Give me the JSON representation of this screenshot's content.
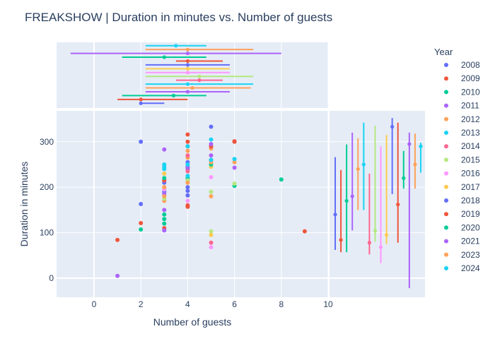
{
  "chart_data": {
    "type": "scatter",
    "title": "FREAKSHOW | Duration in minutes vs. Number of guests",
    "xlabel": "Number of guests",
    "ylabel": "Duration in minutes",
    "xlim": [
      -1.6,
      10
    ],
    "ylim": [
      -42,
      368
    ],
    "x_ticks": [
      0,
      2,
      4,
      6,
      8,
      10
    ],
    "y_ticks": [
      0,
      100,
      200,
      300
    ],
    "legend_title": "Year",
    "legend_position": "right",
    "grid": true,
    "series": [
      {
        "name": "2008",
        "color": "#636efa",
        "points": [
          [
            2,
            163
          ],
          [
            4,
            182
          ],
          [
            4,
            192
          ],
          [
            4,
            215
          ],
          [
            5,
            333
          ],
          [
            3,
            190
          ],
          [
            4,
            200
          ]
        ],
        "marginal_x": {
          "min": 2,
          "max": 3,
          "median": 2
        },
        "marginal_y": {
          "min": 62,
          "max": 266,
          "median": 140,
          "mean": 140
        }
      },
      {
        "name": "2009",
        "color": "#EF553B",
        "points": [
          [
            1,
            84
          ],
          [
            2,
            121
          ],
          [
            4,
            316
          ],
          [
            4,
            157
          ],
          [
            6,
            301
          ],
          [
            9,
            103
          ],
          [
            3,
            110
          ],
          [
            4,
            240
          ],
          [
            4,
            290
          ]
        ],
        "marginal_x": {
          "min": 1,
          "max": 4,
          "median": 2
        },
        "marginal_y": {
          "min": 57,
          "max": 238,
          "median": 84,
          "mean": 84
        }
      },
      {
        "name": "2010",
        "color": "#00cc96",
        "points": [
          [
            2,
            107
          ],
          [
            3,
            120
          ],
          [
            4,
            220
          ],
          [
            6,
            203
          ],
          [
            8,
            217
          ],
          [
            3,
            140
          ]
        ],
        "marginal_x": {
          "min": 1.2,
          "max": 4.8,
          "median": 3.4
        },
        "marginal_y": {
          "min": 57,
          "max": 294,
          "median": 170,
          "mean": 170
        }
      },
      {
        "name": "2011",
        "color": "#ab63fa",
        "points": [
          [
            1,
            5
          ],
          [
            3,
            283
          ],
          [
            4,
            240
          ],
          [
            5,
            260
          ],
          [
            6,
            243
          ],
          [
            3,
            150
          ]
        ],
        "marginal_x": {
          "min": 2.2,
          "max": 5.8,
          "median": 4
        },
        "marginal_y": {
          "min": 105,
          "max": 320,
          "median": 180,
          "mean": 180
        }
      },
      {
        "name": "2012",
        "color": "#FFA15A",
        "points": [
          [
            3,
            170
          ],
          [
            4,
            280
          ],
          [
            5,
            285
          ],
          [
            5,
            180
          ],
          [
            6,
            255
          ],
          [
            4,
            265
          ],
          [
            3,
            200
          ]
        ],
        "marginal_x": {
          "min": 2.2,
          "max": 6.7,
          "median": 4.2
        },
        "marginal_y": {
          "min": 150,
          "max": 308,
          "median": 240,
          "mean": 240
        }
      },
      {
        "name": "2013",
        "color": "#19d3f3",
        "points": [
          [
            3,
            250
          ],
          [
            4,
            290
          ],
          [
            5,
            305
          ],
          [
            6,
            262
          ],
          [
            4,
            225
          ],
          [
            3,
            230
          ]
        ],
        "marginal_x": {
          "min": 2.2,
          "max": 6.8,
          "median": 4
        },
        "marginal_y": {
          "min": 150,
          "max": 342,
          "median": 250,
          "mean": 250
        }
      },
      {
        "name": "2014",
        "color": "#FF6692",
        "points": [
          [
            5,
            78
          ],
          [
            4,
            270
          ],
          [
            3,
            215
          ],
          [
            4,
            235
          ]
        ],
        "marginal_x": {
          "min": 3.5,
          "max": 5.5,
          "median": 4.5
        },
        "marginal_y": {
          "min": 52,
          "max": 230,
          "median": 78,
          "mean": 78
        }
      },
      {
        "name": "2015",
        "color": "#B6E880",
        "points": [
          [
            5,
            103
          ],
          [
            6,
            208
          ],
          [
            4,
            215
          ],
          [
            3,
            175
          ],
          [
            5,
            190
          ]
        ],
        "marginal_x": {
          "min": 2.2,
          "max": 6.8,
          "median": 4.5
        },
        "marginal_y": {
          "min": 80,
          "max": 335,
          "median": 104,
          "mean": 104
        }
      },
      {
        "name": "2016",
        "color": "#FF97FF",
        "points": [
          [
            5,
            68
          ],
          [
            4,
            170
          ],
          [
            3,
            195
          ],
          [
            5,
            222
          ]
        ],
        "marginal_x": {
          "min": 2.2,
          "max": 5.8,
          "median": 4
        },
        "marginal_y": {
          "min": 33,
          "max": 290,
          "median": 68,
          "mean": 68
        }
      },
      {
        "name": "2017",
        "color": "#FECB52",
        "points": [
          [
            5,
            95
          ],
          [
            4,
            210
          ],
          [
            3,
            230
          ],
          [
            5,
            245
          ]
        ],
        "marginal_x": {
          "min": 2.2,
          "max": 5.8,
          "median": 4
        },
        "marginal_y": {
          "min": 75,
          "max": 315,
          "median": 95,
          "mean": 95
        }
      },
      {
        "name": "2018",
        "color": "#636efa",
        "points": [
          [
            2,
            300
          ],
          [
            3,
            210
          ],
          [
            4,
            245
          ],
          [
            5,
            290
          ],
          [
            4,
            255
          ]
        ],
        "marginal_x": {
          "min": 2.2,
          "max": 5.8,
          "median": 4
        },
        "marginal_y": {
          "min": 185,
          "max": 352,
          "median": 333,
          "mean": 333
        }
      },
      {
        "name": "2019",
        "color": "#EF553B",
        "points": [
          [
            4,
            160
          ],
          [
            3,
            215
          ],
          [
            5,
            290
          ],
          [
            4,
            300
          ],
          [
            6,
            300
          ]
        ],
        "marginal_x": {
          "min": 3.5,
          "max": 5.5,
          "median": 4
        },
        "marginal_y": {
          "min": 78,
          "max": 342,
          "median": 162,
          "mean": 162
        }
      },
      {
        "name": "2020",
        "color": "#00cc96",
        "points": [
          [
            3,
            130
          ],
          [
            4,
            245
          ],
          [
            5,
            250
          ],
          [
            3,
            220
          ]
        ],
        "marginal_x": {
          "min": 1.2,
          "max": 4.8,
          "median": 3
        },
        "marginal_y": {
          "min": 197,
          "max": 280,
          "median": 220,
          "mean": 220
        }
      },
      {
        "name": "2021",
        "color": "#ab63fa",
        "points": [
          [
            3,
            105
          ],
          [
            4,
            245
          ],
          [
            5,
            295
          ],
          [
            5,
            270
          ],
          [
            3,
            185
          ]
        ],
        "marginal_x": {
          "min": -1,
          "max": 8,
          "median": 4
        },
        "marginal_y": {
          "min": -22,
          "max": 320,
          "median": 295,
          "mean": 295
        }
      },
      {
        "name": "2023",
        "color": "#FFA15A",
        "points": [
          [
            3,
            200
          ],
          [
            4,
            210
          ],
          [
            5,
            255
          ],
          [
            3,
            180
          ]
        ],
        "marginal_x": {
          "min": 2.2,
          "max": 6.8,
          "median": 4
        },
        "marginal_y": {
          "min": 197,
          "max": 318,
          "median": 250,
          "mean": 250
        }
      },
      {
        "name": "2024",
        "color": "#19d3f3",
        "points": [
          [
            3,
            240
          ],
          [
            4,
            250
          ],
          [
            5,
            260
          ],
          [
            3,
            245
          ]
        ],
        "marginal_x": {
          "min": 2.2,
          "max": 4.8,
          "median": 3.5
        },
        "marginal_y": {
          "min": 232,
          "max": 298,
          "median": 290,
          "mean": 245
        }
      }
    ]
  }
}
